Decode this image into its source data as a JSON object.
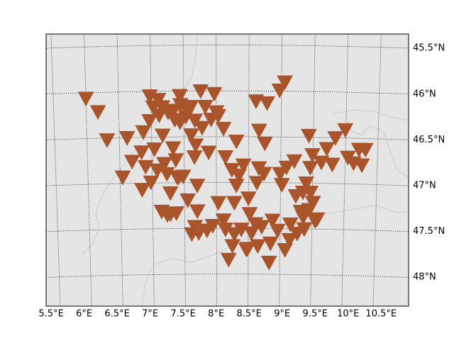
{
  "chart_data": {
    "type": "scatter",
    "x": [
      8.19,
      8.83,
      8.47,
      9.08,
      8.25,
      8.49,
      8.65,
      8.85,
      9.15,
      7.61,
      7.72,
      7.85,
      7.66,
      7.94,
      8.14,
      8.28,
      8.39,
      8.55,
      8.71,
      8.96,
      9.27,
      9.38,
      9.16,
      8.88,
      8.61,
      8.52,
      8.11,
      7.7,
      7.23,
      7.28,
      7.14,
      7.37,
      9.36,
      9.55,
      9.45,
      9.51,
      9.32,
      9.58,
      8.03,
      8.28,
      8.5,
      7.55,
      7.28,
      6.84,
      6.98,
      6.54,
      6.69,
      6.9,
      6.84,
      7.08,
      7.23,
      7.39,
      7.48,
      7.19,
      7.37,
      7.66,
      7.88,
      7.68,
      7.33,
      7.17,
      7.04,
      8.31,
      8.35,
      8.24,
      8.42,
      8.63,
      8.66,
      8.74,
      9.02,
      8.99,
      9.09,
      9.21,
      9.46,
      9.49,
      9.8,
      9.71,
      9.84,
      10.04,
      10.13,
      10.26,
      10.21,
      10.31,
      9.99,
      9.43,
      8.66,
      8.75,
      8.31,
      8.14,
      6.62,
      6.31,
      6.87,
      7.61,
      7.44,
      7.78,
      8.11,
      7.36,
      7.53,
      6.97,
      7.12,
      7.26,
      7.03,
      7.17,
      7.34,
      7.56,
      7.67,
      7.92,
      8.0,
      7.83,
      7.61,
      7.45,
      6.98,
      7.11,
      7.44,
      7.76,
      7.97,
      6.18,
      6.0,
      8.61,
      8.78,
      8.97,
      9.05,
      9.4,
      9.47,
      9.35,
      9.24,
      9.63,
      7.7,
      7.41,
      8.03
    ],
    "series": [
      {
        "color": "#a9542a",
        "values": [
          47.84,
          47.87,
          47.73,
          47.73,
          47.69,
          47.72,
          47.69,
          47.66,
          47.62,
          47.56,
          47.55,
          47.52,
          47.48,
          47.47,
          47.51,
          47.56,
          47.51,
          47.55,
          47.48,
          47.52,
          47.55,
          47.5,
          47.45,
          47.41,
          47.45,
          47.34,
          47.41,
          47.31,
          47.35,
          47.34,
          47.31,
          47.33,
          47.37,
          47.41,
          47.29,
          47.21,
          47.31,
          47.39,
          47.22,
          47.22,
          47.17,
          47.19,
          47.11,
          47.07,
          46.99,
          46.93,
          46.76,
          46.82,
          46.66,
          46.86,
          46.9,
          46.94,
          46.93,
          46.79,
          46.75,
          46.72,
          46.67,
          46.59,
          46.62,
          46.48,
          46.63,
          47.03,
          46.92,
          46.86,
          46.81,
          47.0,
          46.84,
          46.9,
          47.02,
          46.9,
          46.83,
          46.76,
          46.83,
          46.69,
          46.79,
          46.62,
          46.5,
          46.71,
          46.77,
          46.79,
          46.62,
          46.62,
          46.41,
          46.48,
          46.43,
          46.57,
          46.55,
          46.72,
          46.5,
          46.52,
          46.44,
          46.48,
          46.34,
          46.4,
          46.41,
          46.31,
          46.28,
          46.32,
          46.26,
          46.23,
          46.17,
          46.17,
          46.21,
          46.21,
          46.32,
          46.31,
          46.23,
          46.17,
          46.17,
          46.15,
          46.05,
          46.09,
          46.05,
          46.0,
          46.03,
          46.21,
          46.06,
          46.11,
          46.13,
          45.99,
          45.9,
          47.0,
          47.1,
          47.1,
          47.14,
          46.77,
          47.03,
          46.94,
          46.27
        ]
      }
    ],
    "xlim": [
      5.35,
      10.99
    ],
    "ylim": [
      45.38,
      48.35
    ],
    "xticks": [
      {
        "value": 5.5,
        "label": "5.5°E"
      },
      {
        "value": 6,
        "label": "6°E"
      },
      {
        "value": 6.5,
        "label": "6.5°E"
      },
      {
        "value": 7,
        "label": "7°E"
      },
      {
        "value": 7.5,
        "label": "7.5°E"
      },
      {
        "value": 8,
        "label": "8°E"
      },
      {
        "value": 8.5,
        "label": "8.5°E"
      },
      {
        "value": 9,
        "label": "9°E"
      },
      {
        "value": 9.5,
        "label": "9.5°E"
      },
      {
        "value": 10,
        "label": "10°E"
      },
      {
        "value": 10.5,
        "label": "10.5°E"
      }
    ],
    "yticks": [
      {
        "value": 45.5,
        "label": "45.5°N"
      },
      {
        "value": 46,
        "label": "46°N"
      },
      {
        "value": 46.5,
        "label": "46.5°N"
      },
      {
        "value": 47,
        "label": "47°N"
      },
      {
        "value": 47.5,
        "label": "47.5°N"
      },
      {
        "value": 48,
        "label": "48°N"
      }
    ],
    "grid": true
  }
}
